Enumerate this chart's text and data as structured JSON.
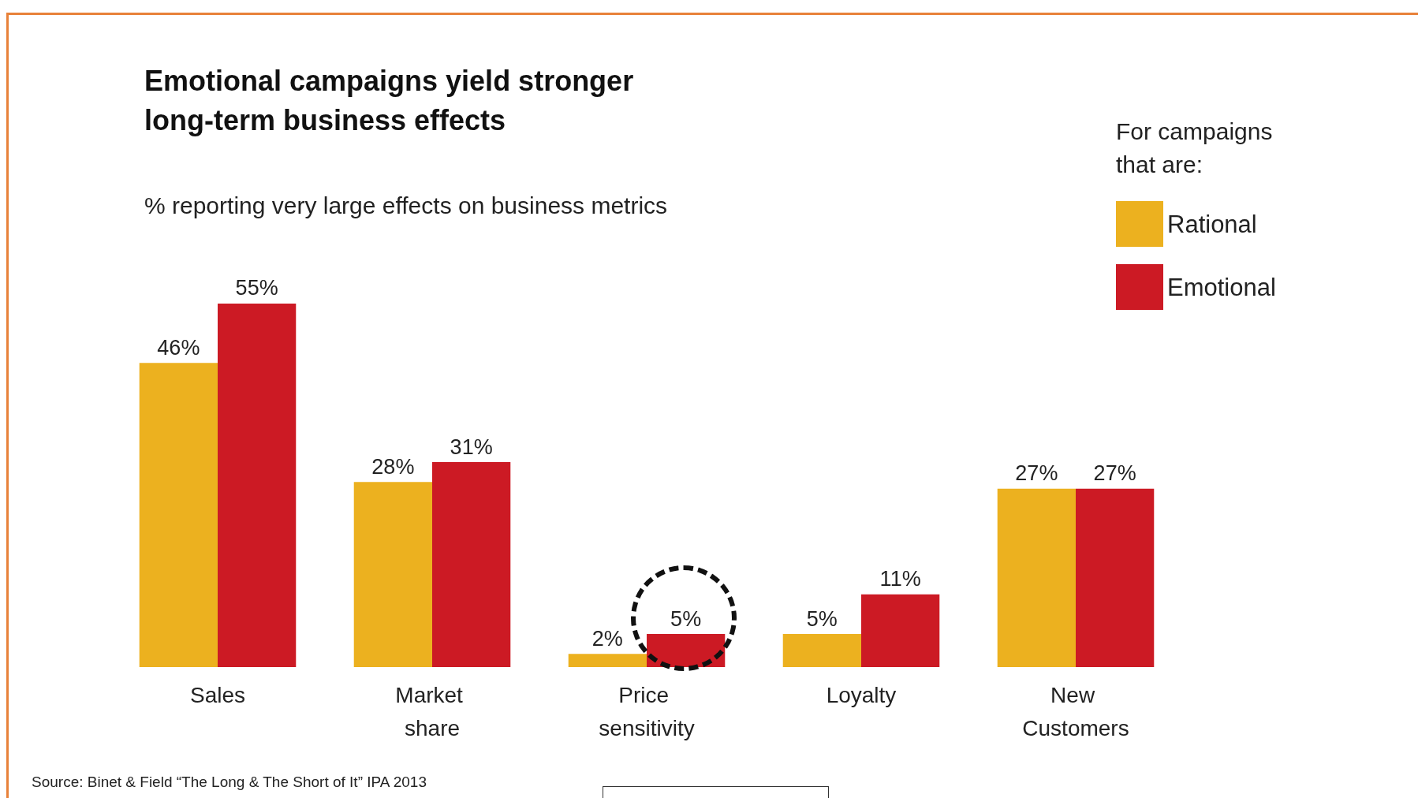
{
  "chart_data": {
    "type": "bar",
    "title": "Emotional campaigns yield stronger\nlong-term business effects",
    "subtitle": "% reporting very large effects on business metrics",
    "legend_title": "For campaigns\nthat are:",
    "categories": [
      "Sales",
      "Market share",
      "Price sensitivity",
      "Loyalty",
      "New Customers"
    ],
    "series": [
      {
        "name": "Rational",
        "color": "#ecb11f",
        "values": [
          46,
          28,
          2,
          5,
          27
        ],
        "value_labels": [
          "46%",
          "28%",
          "2%",
          "5%",
          "27%"
        ]
      },
      {
        "name": "Emotional",
        "color": "#cc1a24",
        "values": [
          55,
          31,
          5,
          11,
          27
        ],
        "value_labels": [
          "55%",
          "31%",
          "5%",
          "11%",
          "27%"
        ]
      }
    ],
    "legend": "top right",
    "annotations": [
      "Source: Binet & Field “The Long & The Short of It” IPA 2013"
    ]
  }
}
